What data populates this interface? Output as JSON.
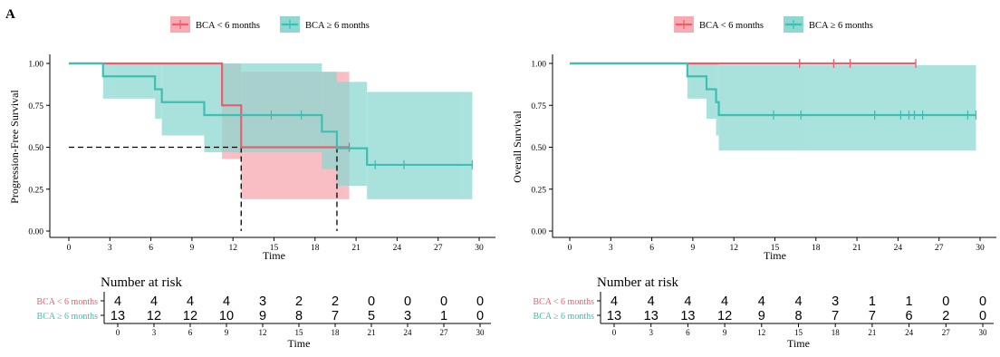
{
  "panel_label": "A",
  "colors": {
    "lt6": "#E8606E",
    "ge6": "#3DBFB2",
    "lt6_band": "#F8A9B1",
    "ge6_band": "#8DD8D2"
  },
  "chart_data": [
    {
      "type": "line",
      "subtype": "kaplan-meier",
      "xlabel": "Time",
      "ylabel": "Progression-Free Survival",
      "xlim": [
        0,
        30
      ],
      "ylim": [
        0,
        1
      ],
      "xticks": [
        "0",
        "3",
        "6",
        "9",
        "12",
        "15",
        "18",
        "21",
        "24",
        "27",
        "30"
      ],
      "yticks": [
        "0.00",
        "0.25",
        "0.50",
        "0.75",
        "1.00"
      ],
      "grid": false,
      "legend_position": "top",
      "median_lines": [
        12.6,
        19.6
      ],
      "series": [
        {
          "name": "BCA < 6 months",
          "color_key": "lt6",
          "steps": [
            [
              0,
              1.0
            ],
            [
              11.2,
              0.75
            ],
            [
              12.6,
              0.5
            ],
            [
              20.5,
              0.5
            ]
          ],
          "band": [
            [
              0,
              1.0,
              1.0
            ],
            [
              11.2,
              0.43,
              1.0
            ],
            [
              12.6,
              0.19,
              0.95
            ],
            [
              20.5,
              0.19,
              0.95
            ]
          ],
          "censor": [
            [
              20.5,
              0.5
            ]
          ]
        },
        {
          "name": "BCA ≥ 6 months",
          "color_key": "ge6",
          "steps": [
            [
              0,
              1.0
            ],
            [
              2.5,
              0.923
            ],
            [
              6.3,
              0.846
            ],
            [
              6.8,
              0.769
            ],
            [
              9.9,
              0.692
            ],
            [
              18.5,
              0.593
            ],
            [
              19.6,
              0.494
            ],
            [
              21.8,
              0.395
            ],
            [
              29.5,
              0.395
            ]
          ],
          "band": [
            [
              0,
              1.0,
              1.0
            ],
            [
              2.5,
              0.79,
              1.0
            ],
            [
              6.3,
              0.67,
              1.0
            ],
            [
              6.8,
              0.57,
              1.0
            ],
            [
              9.9,
              0.47,
              1.0
            ],
            [
              18.5,
              0.37,
              0.95
            ],
            [
              19.6,
              0.27,
              0.89
            ],
            [
              21.8,
              0.19,
              0.83
            ],
            [
              29.5,
              0.19,
              0.83
            ]
          ],
          "censor": [
            [
              14.8,
              0.692
            ],
            [
              17.0,
              0.692
            ],
            [
              22.4,
              0.395
            ],
            [
              24.5,
              0.395
            ],
            [
              29.5,
              0.395
            ]
          ]
        }
      ],
      "risk_table": {
        "title": "Number at risk",
        "xlabel": "Time",
        "rows": [
          {
            "name": "BCA < 6 months",
            "color_key": "lt6",
            "values": [
              "4",
              "4",
              "4",
              "4",
              "3",
              "2",
              "2",
              "0",
              "0",
              "0",
              "0"
            ]
          },
          {
            "name": "BCA ≥ 6 months",
            "color_key": "ge6",
            "values": [
              "13",
              "12",
              "12",
              "10",
              "9",
              "8",
              "7",
              "5",
              "3",
              "1",
              "0"
            ]
          }
        ]
      }
    },
    {
      "type": "line",
      "subtype": "kaplan-meier",
      "xlabel": "Time",
      "ylabel": "Overall Survival",
      "xlim": [
        0,
        30
      ],
      "ylim": [
        0,
        1
      ],
      "xticks": [
        "0",
        "3",
        "6",
        "9",
        "12",
        "15",
        "18",
        "21",
        "24",
        "27",
        "30"
      ],
      "yticks": [
        "0.00",
        "0.25",
        "0.50",
        "0.75",
        "1.00"
      ],
      "grid": false,
      "legend_position": "top",
      "median_lines": [],
      "series": [
        {
          "name": "BCA < 6 months",
          "color_key": "lt6",
          "steps": [
            [
              0,
              1.0
            ],
            [
              25.3,
              1.0
            ]
          ],
          "band": [],
          "censor": [
            [
              16.8,
              1.0
            ],
            [
              19.3,
              1.0
            ],
            [
              20.5,
              1.0
            ],
            [
              25.3,
              1.0
            ]
          ]
        },
        {
          "name": "BCA ≥ 6 months",
          "color_key": "ge6",
          "steps": [
            [
              0,
              1.0
            ],
            [
              8.6,
              0.923
            ],
            [
              10.0,
              0.846
            ],
            [
              10.7,
              0.769
            ],
            [
              10.9,
              0.692
            ],
            [
              29.7,
              0.692
            ]
          ],
          "band": [
            [
              0,
              1.0,
              1.0
            ],
            [
              8.6,
              0.79,
              1.0
            ],
            [
              10.0,
              0.67,
              1.0
            ],
            [
              10.7,
              0.57,
              1.0
            ],
            [
              10.9,
              0.48,
              0.99
            ],
            [
              29.7,
              0.48,
              0.99
            ]
          ],
          "censor": [
            [
              14.9,
              0.692
            ],
            [
              16.9,
              0.692
            ],
            [
              22.3,
              0.692
            ],
            [
              24.2,
              0.692
            ],
            [
              24.8,
              0.692
            ],
            [
              25.2,
              0.692
            ],
            [
              25.8,
              0.692
            ],
            [
              29.1,
              0.692
            ],
            [
              29.7,
              0.692
            ]
          ]
        }
      ],
      "risk_table": {
        "title": "Number at risk",
        "xlabel": "Time",
        "rows": [
          {
            "name": "BCA < 6 months",
            "color_key": "lt6",
            "values": [
              "4",
              "4",
              "4",
              "4",
              "4",
              "4",
              "3",
              "1",
              "1",
              "0",
              "0"
            ]
          },
          {
            "name": "BCA ≥ 6 months",
            "color_key": "ge6",
            "values": [
              "13",
              "13",
              "13",
              "12",
              "9",
              "8",
              "7",
              "7",
              "6",
              "2",
              "0"
            ]
          }
        ]
      }
    }
  ]
}
